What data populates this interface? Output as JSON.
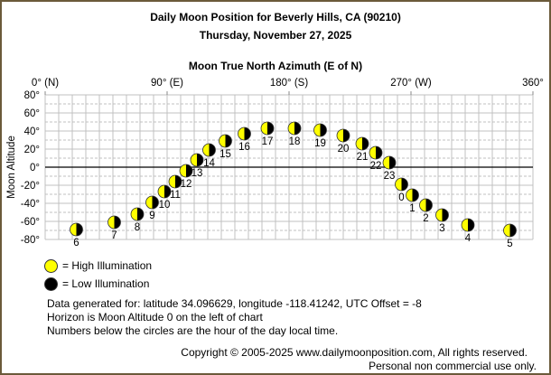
{
  "chart_data": {
    "type": "scatter",
    "title": "Daily Moon Position for Beverly Hills, CA (90210)",
    "subtitle": "Thursday, November 27, 2025",
    "xlabel": "Moon True North Azimuth (E of N)",
    "ylabel": "Moon Altitude",
    "xlim": [
      0,
      360
    ],
    "ylim": [
      -80,
      80
    ],
    "x_ticks": [
      {
        "value": 0,
        "label": "0° (N)"
      },
      {
        "value": 90,
        "label": "90° (E)"
      },
      {
        "value": 180,
        "label": "180° (S)"
      },
      {
        "value": 270,
        "label": "270° (W)"
      },
      {
        "value": 360,
        "label": "360°"
      }
    ],
    "y_ticks": [
      {
        "value": 80,
        "label": "80°"
      },
      {
        "value": 60,
        "label": "60°"
      },
      {
        "value": 40,
        "label": "40°"
      },
      {
        "value": 20,
        "label": "20°"
      },
      {
        "value": 0,
        "label": "0°"
      },
      {
        "value": -20,
        "label": "-20°"
      },
      {
        "value": -40,
        "label": "-40°"
      },
      {
        "value": -60,
        "label": "-60°"
      },
      {
        "value": -80,
        "label": "-80°"
      }
    ],
    "grid": true,
    "points": [
      {
        "hour": "6",
        "azimuth": 23,
        "altitude": -69
      },
      {
        "hour": "7",
        "azimuth": 51,
        "altitude": -61
      },
      {
        "hour": "8",
        "azimuth": 68,
        "altitude": -52
      },
      {
        "hour": "9",
        "azimuth": 79,
        "altitude": -39
      },
      {
        "hour": "10",
        "azimuth": 88,
        "altitude": -27
      },
      {
        "hour": "11",
        "azimuth": 96,
        "altitude": -16
      },
      {
        "hour": "12",
        "azimuth": 104,
        "altitude": -4
      },
      {
        "hour": "13",
        "azimuth": 112,
        "altitude": 8
      },
      {
        "hour": "14",
        "azimuth": 121,
        "altitude": 19
      },
      {
        "hour": "15",
        "azimuth": 133,
        "altitude": 29
      },
      {
        "hour": "16",
        "azimuth": 147,
        "altitude": 37
      },
      {
        "hour": "17",
        "azimuth": 164,
        "altitude": 43
      },
      {
        "hour": "18",
        "azimuth": 184,
        "altitude": 43
      },
      {
        "hour": "19",
        "azimuth": 203,
        "altitude": 41
      },
      {
        "hour": "20",
        "azimuth": 220,
        "altitude": 35
      },
      {
        "hour": "21",
        "azimuth": 234,
        "altitude": 26
      },
      {
        "hour": "22",
        "azimuth": 244,
        "altitude": 16
      },
      {
        "hour": "23",
        "azimuth": 254,
        "altitude": 5
      },
      {
        "hour": "0",
        "azimuth": 263,
        "altitude": -19
      },
      {
        "hour": "1",
        "azimuth": 271,
        "altitude": -31
      },
      {
        "hour": "2",
        "azimuth": 281,
        "altitude": -42
      },
      {
        "hour": "3",
        "azimuth": 293,
        "altitude": -53
      },
      {
        "hour": "4",
        "azimuth": 312,
        "altitude": -64
      },
      {
        "hour": "5",
        "azimuth": 343,
        "altitude": -70
      }
    ]
  },
  "legend": {
    "high": "= High Illumination",
    "low": "= Low Illumination"
  },
  "notes": [
    "Data generated for: latitude 34.096629, longitude -118.41242, UTC Offset = -8",
    "Horizon is Moon Altitude 0 on the left of chart",
    "Numbers below the circles are the hour of the day local time."
  ],
  "copyright": "Copyright © 2005-2025 www.dailymoonposition.com, All rights reserved.",
  "usage": "Personal non commercial use only.",
  "colors": {
    "high": "#ffff00",
    "low": "#000000",
    "border": "#6b5a3a",
    "grid": "#c0c0c0"
  }
}
